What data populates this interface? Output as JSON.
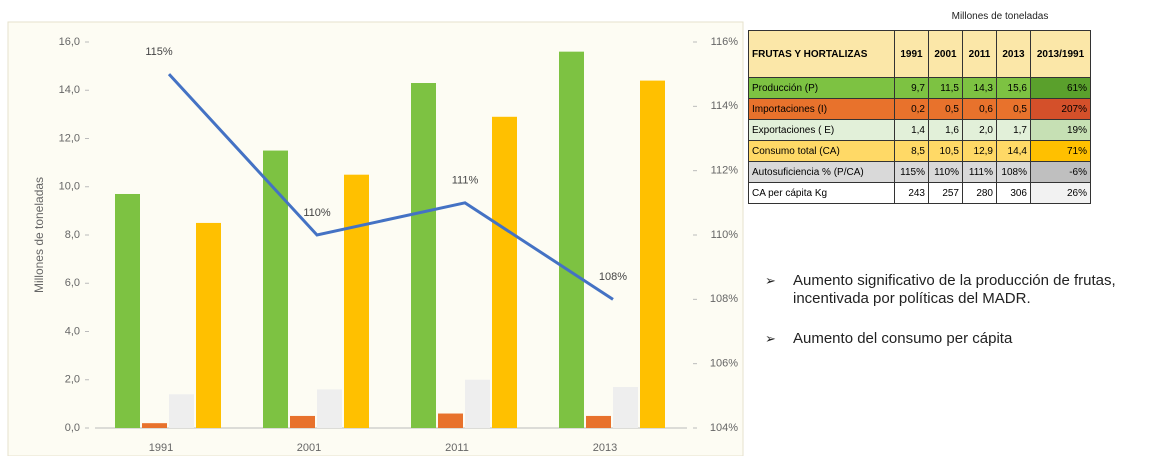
{
  "chart_data": {
    "type": "bar",
    "y_label": "Millones de toneladas",
    "categories": [
      "1991",
      "2001",
      "2011",
      "2013"
    ],
    "series": [
      {
        "color": "#7dc242",
        "values": [
          9.7,
          11.5,
          14.3,
          15.6
        ]
      },
      {
        "color": "#e8722c",
        "values": [
          0.2,
          0.5,
          0.6,
          0.5
        ]
      },
      {
        "color": "#eeeeee",
        "values": [
          1.4,
          1.6,
          2.0,
          1.7
        ]
      },
      {
        "color": "#ffc000",
        "values": [
          8.5,
          10.5,
          12.9,
          14.4
        ]
      },
      {
        "type": "line",
        "axis": "y2",
        "color": "#4472c4",
        "values": [
          115,
          110,
          111,
          108
        ],
        "value_labels": [
          "115%",
          "110%",
          "111%",
          "108%"
        ]
      }
    ],
    "ylim": [
      0,
      16
    ],
    "yticks": [
      {
        "value": 0,
        "label": "0,0"
      },
      {
        "value": 2,
        "label": "2,0"
      },
      {
        "value": 4,
        "label": "4,0"
      },
      {
        "value": 6,
        "label": "6,0"
      },
      {
        "value": 8,
        "label": "8,0"
      },
      {
        "value": 10,
        "label": "10,0"
      },
      {
        "value": 12,
        "label": "12,0"
      },
      {
        "value": 14,
        "label": "14,0"
      },
      {
        "value": 16,
        "label": "16,0"
      }
    ],
    "y2lim": [
      104,
      116
    ],
    "y2ticks": [
      {
        "value": 104,
        "label": "104%"
      },
      {
        "value": 106,
        "label": "106%"
      },
      {
        "value": 108,
        "label": "108%"
      },
      {
        "value": 110,
        "label": "110%"
      },
      {
        "value": 112,
        "label": "112%"
      },
      {
        "value": 114,
        "label": "114%"
      },
      {
        "value": 116,
        "label": "116%"
      }
    ],
    "grid": false
  },
  "table": {
    "title": "Millones de toneladas",
    "header": [
      "FRUTAS Y HORTALIZAS",
      "1991",
      "2001",
      "2011",
      "2013",
      "2013/1991"
    ],
    "rows": [
      [
        "Producción (P)",
        "9,7",
        "11,5",
        "14,3",
        "15,6",
        "61%"
      ],
      [
        "Importaciones (I)",
        "0,2",
        "0,5",
        "0,6",
        "0,5",
        "207%"
      ],
      [
        "Exportaciones ( E)",
        "1,4",
        "1,6",
        "2,0",
        "1,7",
        "19%"
      ],
      [
        "Consumo total (CA)",
        "8,5",
        "10,5",
        "12,9",
        "14,4",
        "71%"
      ],
      [
        "Autosuficiencia % (P/CA)",
        "115%",
        "110%",
        "111%",
        "108%",
        "-6%"
      ],
      [
        "CA per cápita Kg",
        "243",
        "257",
        "280",
        "306",
        "26%"
      ]
    ]
  },
  "bullets": [
    "Aumento significativo de la producción de frutas, incentivada por políticas del MADR.",
    "Aumento del consumo per cápita"
  ]
}
